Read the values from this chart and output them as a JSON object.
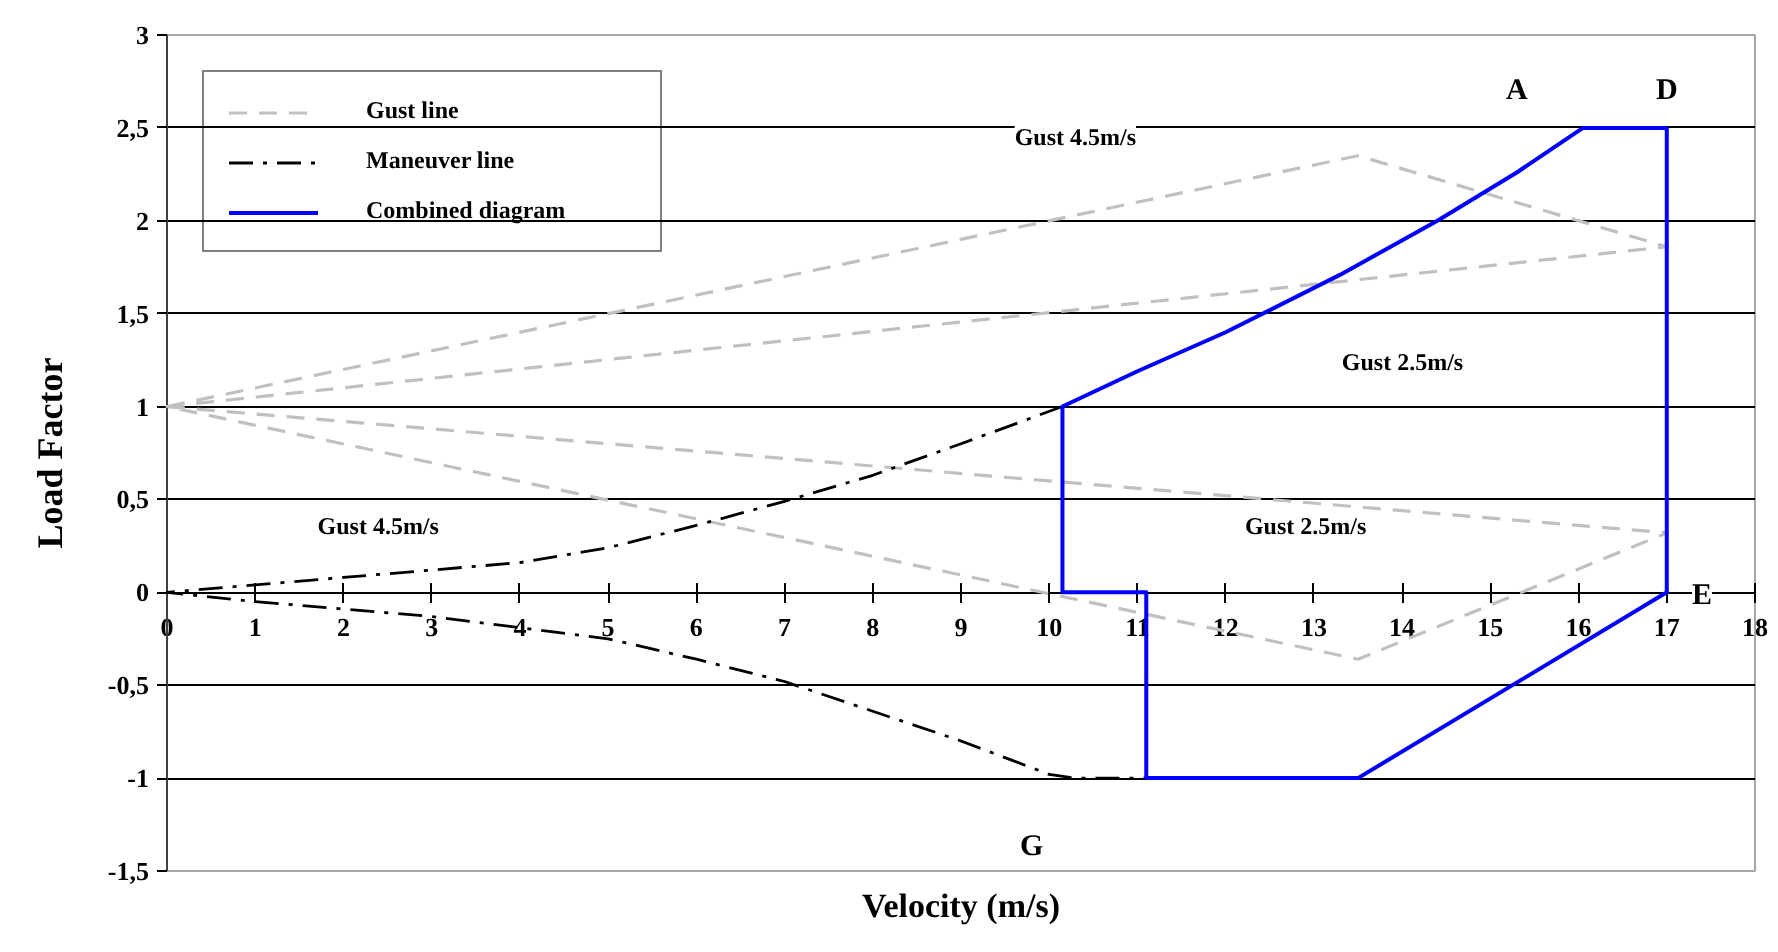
{
  "chart_data": {
    "type": "line",
    "xlabel": "Velocity (m/s)",
    "ylabel": "Load Factor",
    "xlim": [
      0,
      18
    ],
    "ylim": [
      -1.5,
      3
    ],
    "xticks": [
      0,
      1,
      2,
      3,
      4,
      5,
      6,
      7,
      8,
      9,
      10,
      11,
      12,
      13,
      14,
      15,
      16,
      17,
      18
    ],
    "yticks": [
      3,
      {
        "value": 2.5,
        "label": "2,5"
      },
      2,
      {
        "value": 1.5,
        "label": "1,5"
      },
      1,
      {
        "value": 0.5,
        "label": "0,5"
      },
      0,
      {
        "value": -0.5,
        "label": "-0,5"
      },
      -1,
      {
        "value": -1.5,
        "label": "-1,5"
      }
    ],
    "grid": "y",
    "legend": "top left",
    "series": [
      {
        "name": "Gust line",
        "color": "#c0c0c0",
        "line_style": "dashed",
        "x": [
          0,
          13.5,
          17,
          0,
          13.5,
          17,
          null,
          0,
          17
        ],
        "values": [
          1,
          2.35,
          1.86,
          1,
          -0.36,
          0.32,
          null,
          1,
          0.32
        ]
      },
      {
        "name": "Maneuver line",
        "color": "#000000",
        "line_style": "dashdot",
        "x": [
          10.15,
          9,
          8,
          7,
          6,
          5,
          4,
          3,
          2,
          1,
          0,
          1,
          2,
          3,
          4,
          5,
          6,
          7,
          8,
          9,
          10,
          10.3,
          11.1
        ],
        "values": [
          1.0,
          0.8,
          0.63,
          0.49,
          0.36,
          0.24,
          0.16,
          0.12,
          0.08,
          0.04,
          0,
          -0.05,
          -0.09,
          -0.13,
          -0.19,
          -0.25,
          -0.36,
          -0.48,
          -0.64,
          -0.8,
          -0.98,
          -1.0,
          -1.0
        ]
      },
      {
        "name": "Combined diagram",
        "color": "#0000ff",
        "line_style": "solid",
        "x": [
          10.15,
          11,
          12,
          13.3,
          14.4,
          15.3,
          16.05,
          17,
          17,
          13.5,
          11.1,
          11.1,
          10.15,
          10.15,
          11
        ],
        "values": [
          1.0,
          1.19,
          1.4,
          1.71,
          2.0,
          2.26,
          2.5,
          2.5,
          0,
          -1,
          -1,
          0,
          0,
          1.0,
          1.19
        ]
      }
    ],
    "annotations": [
      "Gust 4.5m/s",
      "Gust 2.5m/s",
      "Gust 4.5m/s",
      "Gust 2.5m/s",
      {
        "text": "A",
        "x": 15.3,
        "y": 2.7
      },
      {
        "text": "D",
        "x": 17,
        "y": 2.7
      },
      {
        "text": "E",
        "x": 17.4,
        "y": -0.02
      },
      {
        "text": "G",
        "x": 9.8,
        "y": -1.37
      }
    ]
  }
}
